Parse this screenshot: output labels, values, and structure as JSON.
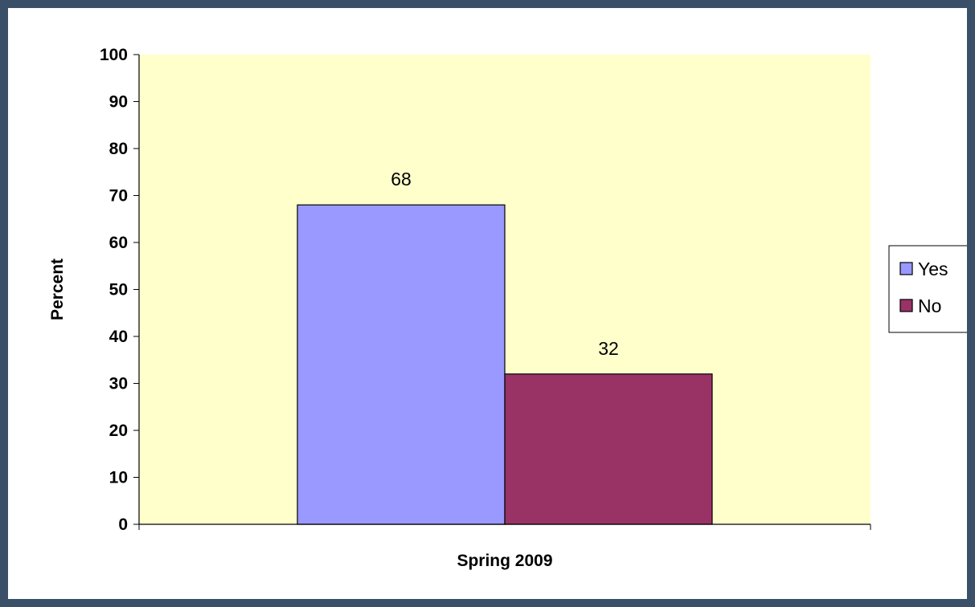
{
  "chart_data": {
    "type": "bar",
    "categories": [
      "Spring 2009"
    ],
    "series": [
      {
        "name": "Yes",
        "values": [
          68
        ],
        "color": "#9999ff"
      },
      {
        "name": "No",
        "values": [
          32
        ],
        "color": "#993366"
      }
    ],
    "title": "",
    "xlabel": "Spring 2009",
    "ylabel": "Percent",
    "ylim": [
      0,
      100
    ],
    "yticks": [
      0,
      10,
      20,
      30,
      40,
      50,
      60,
      70,
      80,
      90,
      100
    ],
    "grid": false,
    "legend": "right",
    "plot_background": "#ffffcc",
    "page_background": "#3a5068"
  }
}
